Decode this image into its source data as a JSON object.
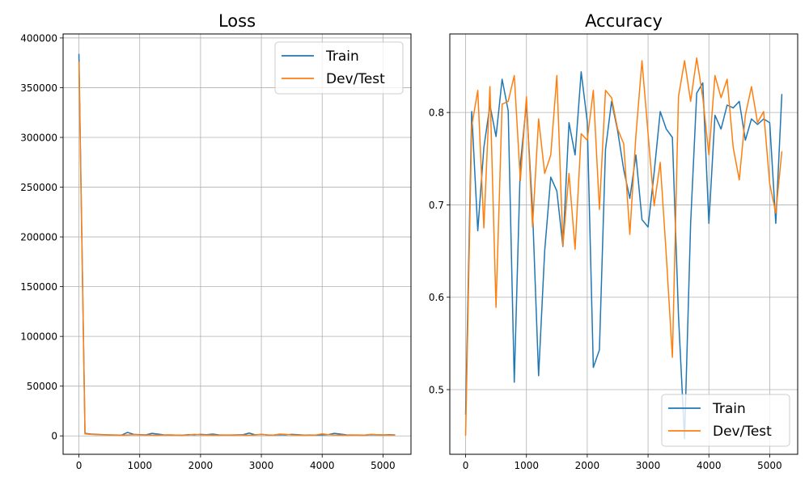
{
  "chart_data": [
    {
      "type": "line",
      "title": "Loss",
      "xlabel": "",
      "ylabel": "",
      "xlim": [
        -260,
        5460
      ],
      "ylim": [
        -18500,
        404000
      ],
      "xticks": [
        0,
        1000,
        2000,
        3000,
        4000,
        5000
      ],
      "yticks": [
        0,
        50000,
        100000,
        150000,
        200000,
        250000,
        300000,
        350000,
        400000
      ],
      "xtick_labels": [
        "0",
        "1000",
        "2000",
        "3000",
        "4000",
        "5000"
      ],
      "ytick_labels": [
        "0",
        "50000",
        "100000",
        "150000",
        "200000",
        "250000",
        "300000",
        "350000",
        "400000"
      ],
      "grid": true,
      "legend": {
        "location": "upper-right",
        "entries": [
          "Train",
          "Dev/Test"
        ]
      },
      "series": [
        {
          "name": "Train",
          "color": "#1f77b4",
          "x": [
            0,
            100,
            200,
            300,
            400,
            500,
            600,
            700,
            800,
            900,
            1000,
            1100,
            1200,
            1300,
            1400,
            1500,
            1600,
            1700,
            1800,
            1900,
            2000,
            2100,
            2200,
            2300,
            2400,
            2500,
            2600,
            2700,
            2800,
            2900,
            3000,
            3100,
            3200,
            3300,
            3400,
            3500,
            3600,
            3700,
            3800,
            3900,
            4000,
            4100,
            4200,
            4300,
            4400,
            4500,
            4600,
            4700,
            4800,
            4900,
            5000,
            5100,
            5200
          ],
          "y": [
            384000,
            2500,
            1800,
            1500,
            1200,
            1000,
            900,
            800,
            3500,
            1500,
            1200,
            1000,
            2500,
            1800,
            1000,
            900,
            800,
            700,
            1200,
            1000,
            1500,
            1200,
            1800,
            1000,
            900,
            800,
            1000,
            1200,
            2800,
            1000,
            1500,
            900,
            800,
            1200,
            1000,
            1500,
            1200,
            800,
            900,
            800,
            1000,
            1200,
            2500,
            1800,
            1000,
            900,
            800,
            700,
            1200,
            1000,
            900,
            1200,
            1000
          ]
        },
        {
          "name": "Dev/Test",
          "color": "#ff7f0e",
          "x": [
            0,
            100,
            200,
            300,
            400,
            500,
            600,
            700,
            800,
            900,
            1000,
            1100,
            1200,
            1300,
            1400,
            1500,
            1600,
            1700,
            1800,
            1900,
            2000,
            2100,
            2200,
            2300,
            2400,
            2500,
            2600,
            2700,
            2800,
            2900,
            3000,
            3100,
            3200,
            3300,
            3400,
            3500,
            3600,
            3700,
            3800,
            3900,
            4000,
            4100,
            4200,
            4300,
            4400,
            4500,
            4600,
            4700,
            4800,
            4900,
            5000,
            5100,
            5200
          ],
          "y": [
            376000,
            2000,
            1500,
            1200,
            1000,
            900,
            800,
            700,
            900,
            1200,
            1000,
            900,
            800,
            700,
            900,
            1000,
            800,
            700,
            900,
            1500,
            1000,
            900,
            800,
            700,
            800,
            900,
            1000,
            800,
            700,
            900,
            1500,
            1000,
            800,
            1800,
            1500,
            900,
            800,
            700,
            800,
            900,
            2000,
            1200,
            900,
            800,
            700,
            800,
            900,
            800,
            1500,
            1200,
            1000,
            900,
            800
          ]
        }
      ]
    },
    {
      "type": "line",
      "title": "Accuracy",
      "xlabel": "",
      "ylabel": "",
      "xlim": [
        -260,
        5460
      ],
      "ylim": [
        0.43,
        0.885
      ],
      "xticks": [
        0,
        1000,
        2000,
        3000,
        4000,
        5000
      ],
      "yticks": [
        0.5,
        0.6,
        0.7,
        0.8
      ],
      "xtick_labels": [
        "0",
        "1000",
        "2000",
        "3000",
        "4000",
        "5000"
      ],
      "ytick_labels": [
        "0.5",
        "0.6",
        "0.7",
        "0.8"
      ],
      "grid": true,
      "legend": {
        "location": "lower-right",
        "entries": [
          "Train",
          "Dev/Test"
        ]
      },
      "series": [
        {
          "name": "Train",
          "color": "#1f77b4",
          "x": [
            0,
            100,
            200,
            300,
            400,
            500,
            600,
            700,
            800,
            900,
            1000,
            1100,
            1200,
            1300,
            1400,
            1500,
            1600,
            1700,
            1800,
            1900,
            2000,
            2100,
            2200,
            2300,
            2400,
            2500,
            2600,
            2700,
            2800,
            2900,
            3000,
            3100,
            3200,
            3300,
            3400,
            3500,
            3600,
            3700,
            3800,
            3900,
            4000,
            4100,
            4200,
            4300,
            4400,
            4500,
            4600,
            4700,
            4800,
            4900,
            5000,
            5100,
            5200
          ],
          "y": [
            0.473,
            0.801,
            0.672,
            0.762,
            0.808,
            0.774,
            0.836,
            0.802,
            0.508,
            0.744,
            0.81,
            0.695,
            0.515,
            0.65,
            0.73,
            0.715,
            0.655,
            0.789,
            0.754,
            0.844,
            0.79,
            0.524,
            0.543,
            0.76,
            0.812,
            0.78,
            0.738,
            0.707,
            0.754,
            0.684,
            0.676,
            0.735,
            0.801,
            0.782,
            0.773,
            0.58,
            0.447,
            0.68,
            0.821,
            0.832,
            0.68,
            0.797,
            0.782,
            0.808,
            0.805,
            0.812,
            0.77,
            0.793,
            0.787,
            0.793,
            0.789,
            0.68,
            0.82
          ]
        },
        {
          "name": "Dev/Test",
          "color": "#ff7f0e",
          "x": [
            0,
            100,
            200,
            300,
            400,
            500,
            600,
            700,
            800,
            900,
            1000,
            1100,
            1200,
            1300,
            1400,
            1500,
            1600,
            1700,
            1800,
            1900,
            2000,
            2100,
            2200,
            2300,
            2400,
            2500,
            2600,
            2700,
            2800,
            2900,
            3000,
            3100,
            3200,
            3300,
            3400,
            3500,
            3600,
            3700,
            3800,
            3900,
            4000,
            4100,
            4200,
            4300,
            4400,
            4500,
            4600,
            4700,
            4800,
            4900,
            5000,
            5100,
            5200
          ],
          "y": [
            0.45,
            0.785,
            0.824,
            0.675,
            0.828,
            0.589,
            0.809,
            0.812,
            0.84,
            0.726,
            0.817,
            0.676,
            0.793,
            0.734,
            0.754,
            0.84,
            0.656,
            0.734,
            0.652,
            0.777,
            0.77,
            0.824,
            0.695,
            0.824,
            0.816,
            0.782,
            0.766,
            0.668,
            0.775,
            0.856,
            0.777,
            0.699,
            0.746,
            0.645,
            0.535,
            0.817,
            0.856,
            0.812,
            0.859,
            0.816,
            0.754,
            0.84,
            0.816,
            0.836,
            0.762,
            0.727,
            0.797,
            0.828,
            0.789,
            0.801,
            0.723,
            0.691,
            0.758
          ]
        }
      ]
    }
  ]
}
